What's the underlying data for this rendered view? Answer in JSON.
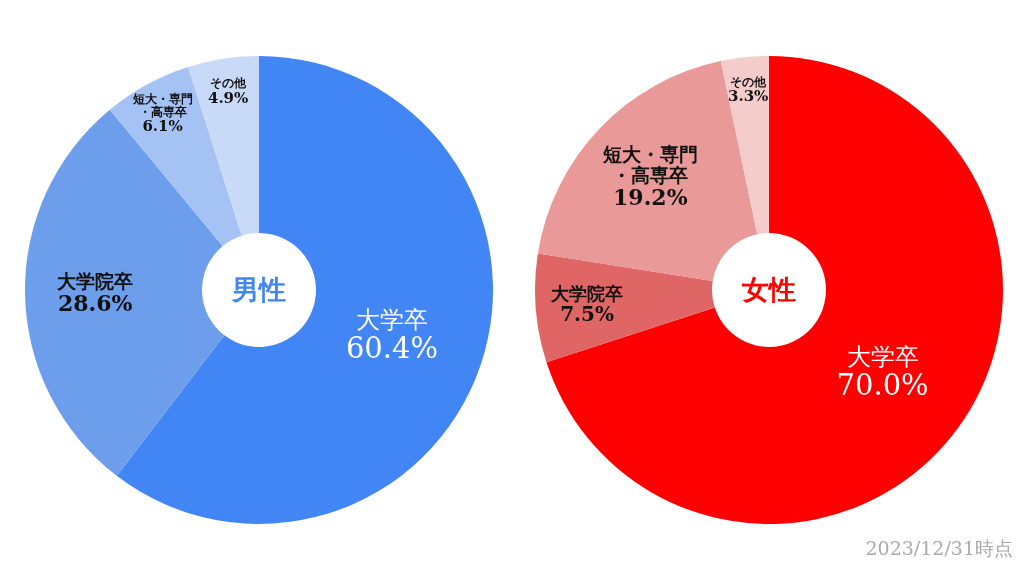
{
  "chart_data": [
    {
      "type": "donut",
      "title": "男性",
      "categories": [
        "大学卒",
        "大学院卒",
        "短大・専門・高専卒",
        "その他"
      ],
      "values": [
        60.4,
        28.6,
        6.1,
        4.9
      ],
      "colors": [
        "#4285f4",
        "#6d9eeb",
        "#a4c2f4",
        "#c9daf8"
      ],
      "value_labels": [
        "60.4%",
        "28.6%",
        "6.1%",
        "4.9%"
      ]
    },
    {
      "type": "donut",
      "title": "女性",
      "categories": [
        "大学卒",
        "大学院卒",
        "短大・専門・高専卒",
        "その他"
      ],
      "values": [
        70.0,
        7.5,
        19.2,
        3.3
      ],
      "colors": [
        "#ff0000",
        "#e06666",
        "#ea9999",
        "#f4cccc"
      ],
      "value_labels": [
        "70.0%",
        "7.5%",
        "19.2%",
        "3.3%"
      ],
      "annotations": [
        "2023/12/31時点"
      ]
    }
  ]
}
